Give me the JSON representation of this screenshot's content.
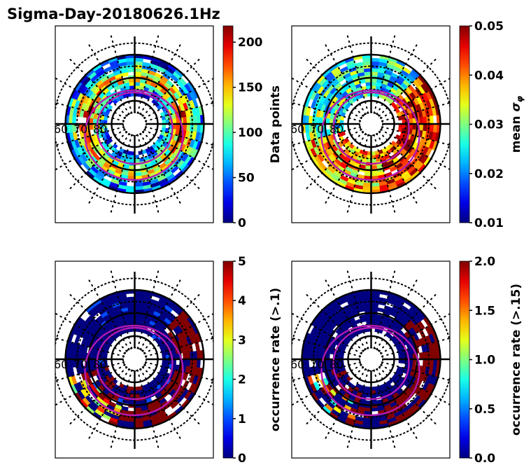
{
  "figure": {
    "title": "Sigma-Day-20180626.1Hz"
  },
  "chart_data": [
    {
      "type": "heatmap",
      "projection": "polar (magnetic latitude / MLT)",
      "panel": "top-left",
      "title": "",
      "colorbar": {
        "label": "Data points",
        "label_math": false,
        "range": [
          0,
          218
        ],
        "ticks": [
          0,
          50,
          100,
          150,
          200
        ],
        "tick_labels": [
          "0",
          "50",
          "100",
          "150",
          "200"
        ],
        "colormap": "jet"
      },
      "lat_labels": [
        "60",
        "70",
        "80"
      ],
      "lat_circles_solid": [
        60,
        70,
        80
      ],
      "lat_circles_dotted": [
        55,
        65,
        75,
        85
      ],
      "oval_boundaries_color": "#b21ab2",
      "pattern": "ring",
      "summary": "Counts 0-218 in annular band between ~60 and ~75 MLAT; highest (150-218) on dawn/dusk flanks and noon sector; lower (0-60) at outer edge."
    },
    {
      "type": "heatmap",
      "projection": "polar (magnetic latitude / MLT)",
      "panel": "top-right",
      "title": "",
      "colorbar": {
        "label": "mean σφ",
        "label_math": true,
        "range": [
          0.01,
          0.05
        ],
        "ticks": [
          0.01,
          0.02,
          0.03,
          0.04,
          0.05
        ],
        "tick_labels": [
          "0.01",
          "0.02",
          "0.03",
          "0.04",
          "0.05"
        ],
        "colormap": "jet"
      },
      "lat_labels": [
        "60",
        "70",
        "80"
      ],
      "lat_circles_solid": [
        60,
        70,
        80
      ],
      "lat_circles_dotted": [
        55,
        65,
        75,
        85
      ],
      "oval_boundaries_color": "#b21ab2",
      "pattern": "sigma",
      "summary": "Mean phase scintillation ~0.02-0.03 on dayside/dusk, rising to >=0.05 (saturated) in pre-midnight/dawn sector on the right side; mixed 0.03-0.05 in the lower (midnight) sector."
    },
    {
      "type": "heatmap",
      "projection": "polar (magnetic latitude / MLT)",
      "panel": "bottom-left",
      "title": "",
      "colorbar": {
        "label": "occurrence rate (>.1)",
        "label_math": false,
        "range": [
          0,
          5
        ],
        "ticks": [
          0,
          1,
          2,
          3,
          4,
          5
        ],
        "tick_labels": [
          "0",
          "1",
          "2",
          "3",
          "4",
          "5"
        ],
        "colormap": "jet"
      },
      "lat_labels": [
        "60",
        "70",
        "80"
      ],
      "lat_circles_solid": [
        60,
        70,
        80
      ],
      "lat_circles_dotted": [
        55,
        65,
        75,
        85
      ],
      "oval_boundaries_color": "#b21ab2",
      "pattern": "occ1",
      "summary": "Occurrence rate mostly ~0 (dark blue); high (5, saturated) on right/lower-right sector; 2-4 patches in lower-left sector."
    },
    {
      "type": "heatmap",
      "projection": "polar (magnetic latitude / MLT)",
      "panel": "bottom-right",
      "title": "",
      "colorbar": {
        "label": "occurrence rate (>.15)",
        "label_math": false,
        "range": [
          0,
          2
        ],
        "ticks": [
          0,
          0.5,
          1,
          1.5,
          2
        ],
        "tick_labels": [
          "0.0",
          "0.5",
          "1.0",
          "1.5",
          "2.0"
        ],
        "colormap": "jet"
      },
      "lat_labels": [
        "60",
        "70",
        "80"
      ],
      "lat_circles_solid": [
        60,
        70,
        80
      ],
      "lat_circles_dotted": [
        55,
        65,
        75,
        85
      ],
      "oval_boundaries_color": "#b21ab2",
      "pattern": "occ2",
      "summary": "Occurrence rate mostly 0 (dark blue); saturated (2.0) on right/lower-right sector; a few 0.7-1.6 bins in lower-left sector."
    }
  ]
}
